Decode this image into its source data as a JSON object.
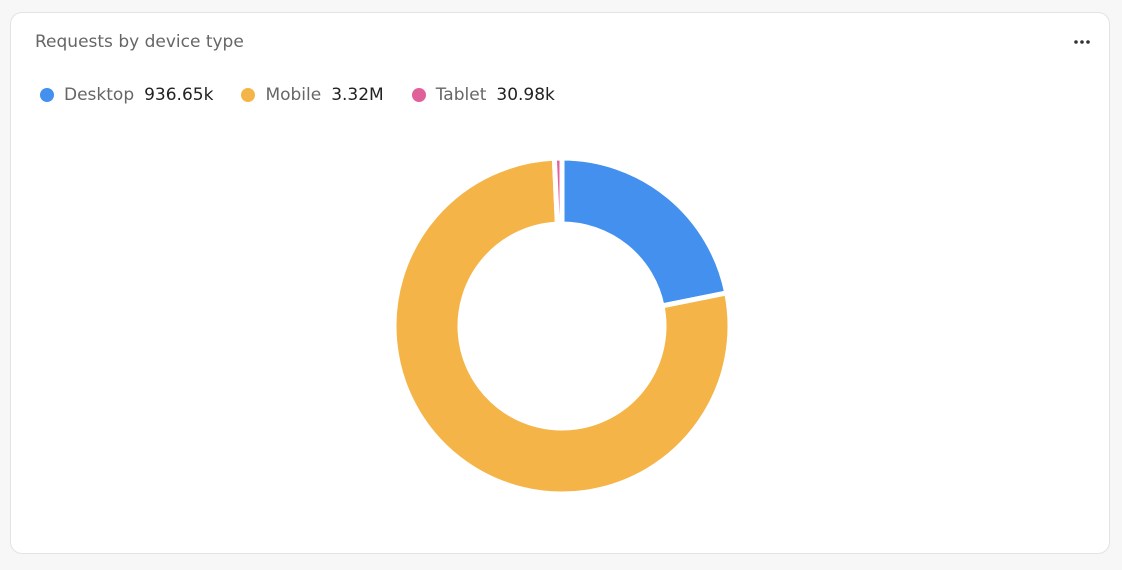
{
  "chart_data": {
    "type": "donut",
    "title": "Requests by device type",
    "categories": [
      "Desktop",
      "Mobile",
      "Tablet"
    ],
    "values": [
      936650,
      3320000,
      30980
    ],
    "value_labels": [
      "936.65k",
      "3.32M",
      "30.98k"
    ],
    "colors": [
      "#4390ef",
      "#f5b447",
      "#e0609a"
    ]
  }
}
